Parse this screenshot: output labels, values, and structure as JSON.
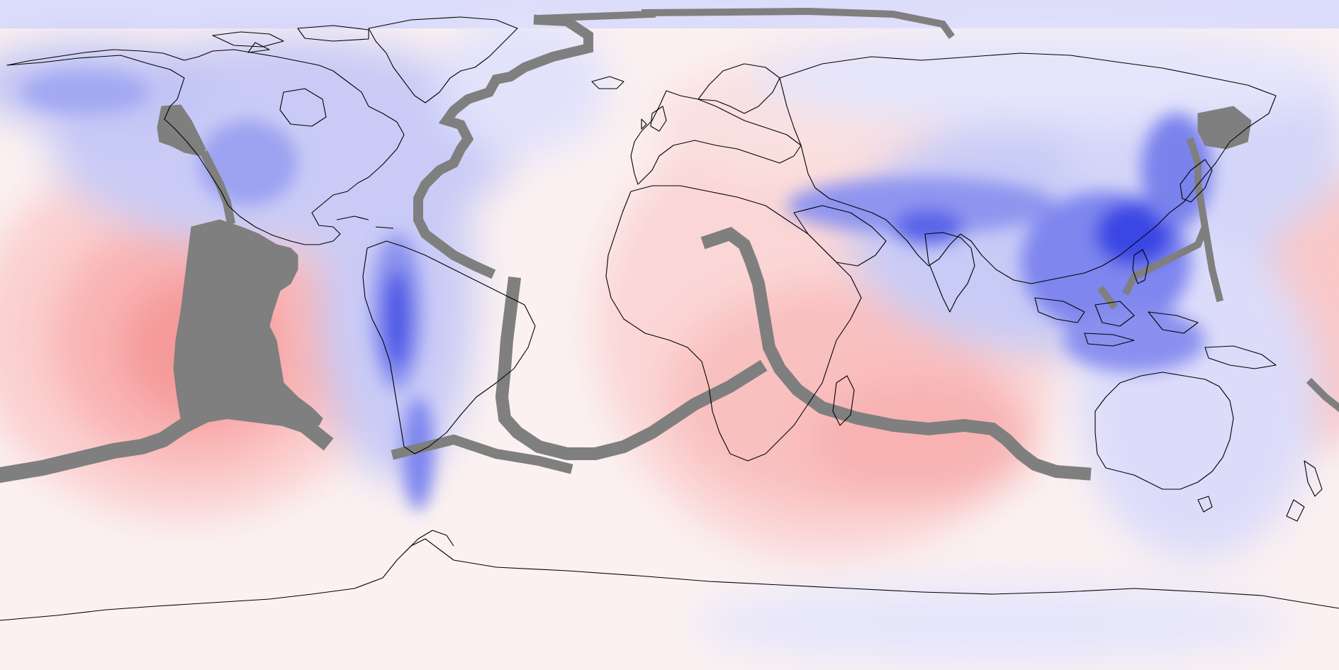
{
  "map": {
    "projection": "equirectangular",
    "coverage": "global",
    "field_colormap": {
      "negative_color": "#1a2fe0",
      "neutral_color": "#fbf3f3",
      "positive_color": "#ff7b7b",
      "masked_color": "#7f7f7f"
    },
    "coastline_color": "#000000"
  }
}
